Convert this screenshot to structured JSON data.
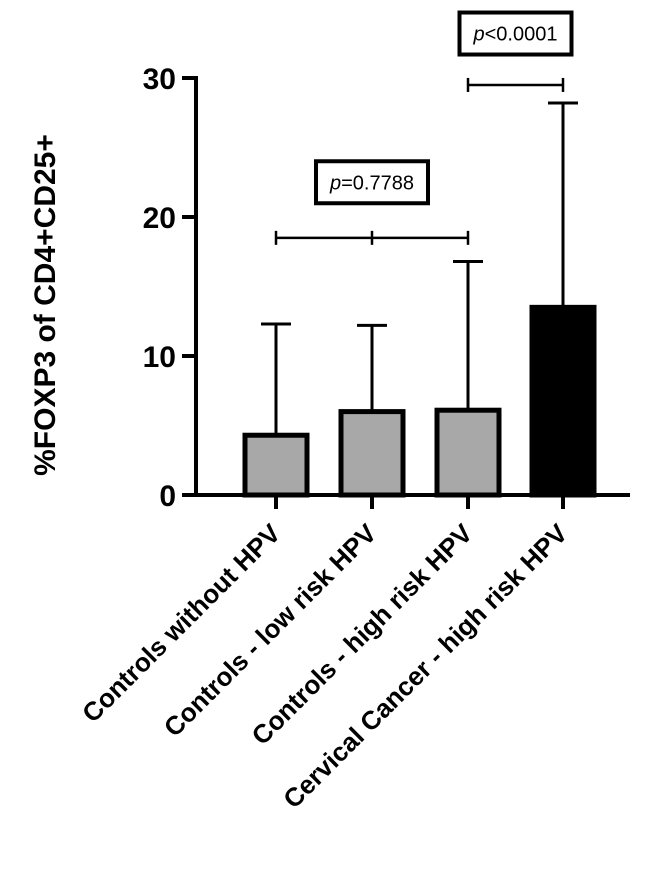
{
  "chart_data": {
    "type": "bar",
    "ylabel": "%FOXP3 of CD4+CD25+",
    "ylim": [
      0,
      30
    ],
    "yticks": [
      0,
      10,
      20,
      30
    ],
    "categories": [
      "Controls without HPV",
      "Controls - low risk HPV",
      "Controls - high risk HPV",
      "Cervical Cancer - high risk HPV"
    ],
    "values": [
      4.3,
      6.0,
      6.1,
      13.5
    ],
    "errors": [
      8.0,
      6.2,
      10.7,
      14.7
    ],
    "colors": [
      "#a8a8a8",
      "#a8a8a8",
      "#a8a8a8",
      "#000000"
    ],
    "annotations": [
      {
        "p_label": "p",
        "value_text": "=0.7788",
        "from": 0,
        "to": 2,
        "y": 18.5,
        "box_y": 22.5
      },
      {
        "p_label": "p",
        "value_text": "<0.0001",
        "from": 2,
        "to": 3,
        "y": 29.5,
        "box_y": 33.2
      }
    ]
  }
}
